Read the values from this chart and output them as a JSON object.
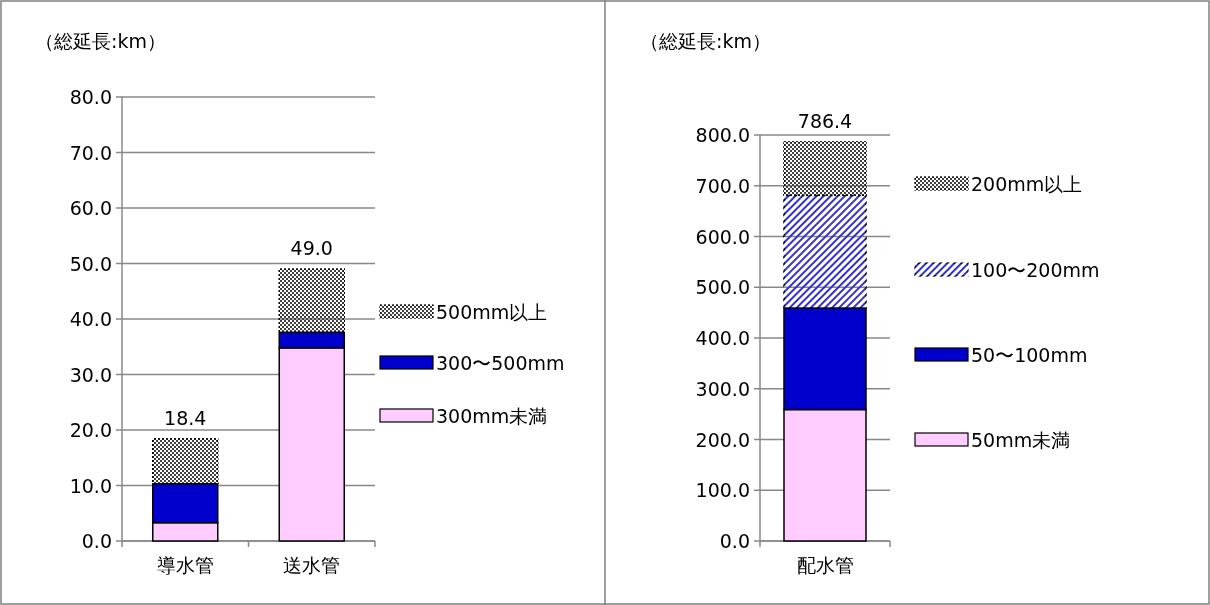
{
  "chart_data": [
    {
      "type": "bar",
      "stacked": true,
      "title": "（総延長:km）",
      "categories": [
        "導水管",
        "送水管"
      ],
      "series": [
        {
          "name": "300mm未満",
          "color": "#ffccff",
          "values": [
            3.3,
            34.8
          ]
        },
        {
          "name": "300〜500mm",
          "color": "#0000cc",
          "values": [
            7.0,
            2.8
          ]
        },
        {
          "name": "500mm以上",
          "color": "#404040",
          "values": [
            8.1,
            11.4
          ]
        }
      ],
      "totals": [
        "18.4",
        "49.0"
      ],
      "ylim": [
        0,
        80
      ],
      "yticks": [
        {
          "value": 0,
          "label": "0.0"
        },
        {
          "value": 10,
          "label": "10.0"
        },
        {
          "value": 20,
          "label": "20.0"
        },
        {
          "value": 30,
          "label": "30.0"
        },
        {
          "value": 40,
          "label": "40.0"
        },
        {
          "value": 50,
          "label": "50.0"
        },
        {
          "value": 60,
          "label": "60.0"
        },
        {
          "value": 70,
          "label": "70.0"
        },
        {
          "value": 80,
          "label": "80.0"
        }
      ],
      "grid": "y",
      "legend": "right"
    },
    {
      "type": "bar",
      "stacked": true,
      "title": "（総延長:km）",
      "categories": [
        "配水管"
      ],
      "series": [
        {
          "name": "50mm未満",
          "color": "#ffccff",
          "values": [
            259
          ]
        },
        {
          "name": "50〜100mm",
          "color": "#0000cc",
          "values": [
            200
          ]
        },
        {
          "name": "100〜200mm",
          "color": "#3333cc",
          "values": [
            222
          ]
        },
        {
          "name": "200mm以上",
          "color": "#404040",
          "values": [
            105.4
          ]
        }
      ],
      "totals": [
        "786.4"
      ],
      "ylim": [
        0,
        800
      ],
      "yticks": [
        {
          "value": 0,
          "label": "0.0"
        },
        {
          "value": 100,
          "label": "100.0"
        },
        {
          "value": 200,
          "label": "200.0"
        },
        {
          "value": 300,
          "label": "300.0"
        },
        {
          "value": 400,
          "label": "400.0"
        },
        {
          "value": 500,
          "label": "500.0"
        },
        {
          "value": 600,
          "label": "600.0"
        },
        {
          "value": 700,
          "label": "700.0"
        },
        {
          "value": 800,
          "label": "800.0"
        }
      ],
      "grid": "y",
      "legend": "right"
    }
  ]
}
